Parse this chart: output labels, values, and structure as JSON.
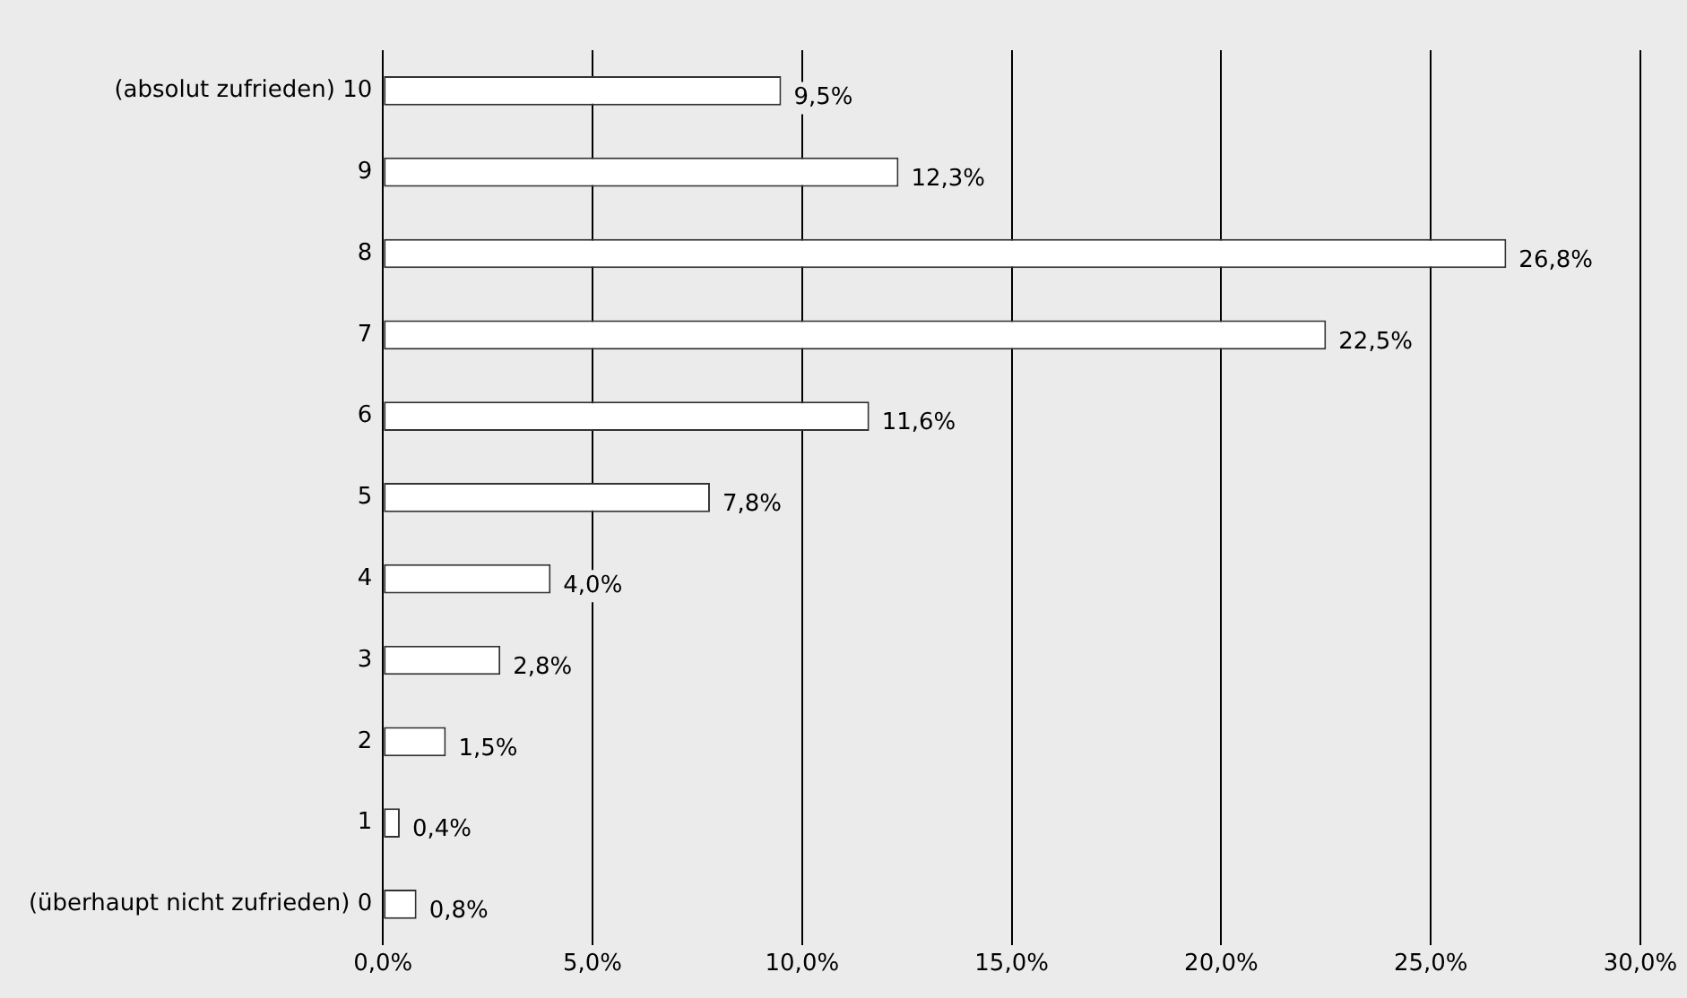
{
  "chart_data": {
    "type": "bar",
    "orientation": "horizontal",
    "categories": [
      "(absolut zufrieden) 10",
      "9",
      "8",
      "7",
      "6",
      "5",
      "4",
      "3",
      "2",
      "1",
      "(überhaupt nicht zufrieden) 0"
    ],
    "values": [
      9.5,
      12.3,
      26.8,
      22.5,
      11.6,
      7.8,
      4.0,
      2.8,
      1.5,
      0.4,
      0.8
    ],
    "value_labels": [
      "9,5%",
      "12,3%",
      "26,8%",
      "22,5%",
      "11,6%",
      "7,8%",
      "4,0%",
      "2,8%",
      "1,5%",
      "0,4%",
      "0,8%"
    ],
    "color": "#ffffff",
    "xlim": [
      0,
      30
    ],
    "xticks": [
      {
        "value": 0,
        "label": "0,0%"
      },
      {
        "value": 5,
        "label": "5,0%"
      },
      {
        "value": 10,
        "label": "10,0%"
      },
      {
        "value": 15,
        "label": "15,0%"
      },
      {
        "value": 20,
        "label": "20,0%"
      },
      {
        "value": 25,
        "label": "25,0%"
      },
      {
        "value": 30,
        "label": "30,0%"
      }
    ],
    "grid": "x",
    "legend": false
  }
}
